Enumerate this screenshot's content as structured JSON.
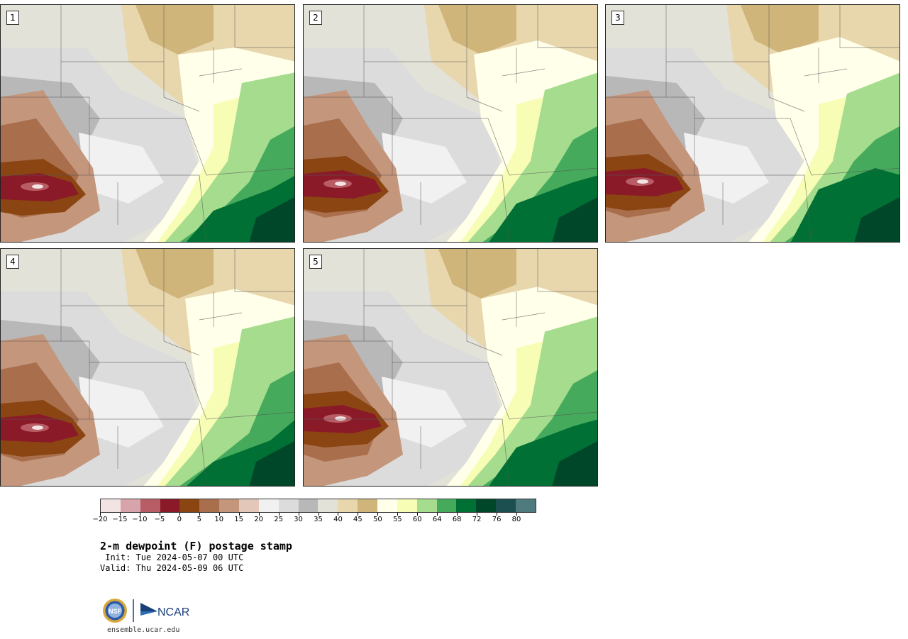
{
  "panels": [
    {
      "label": "1"
    },
    {
      "label": "2"
    },
    {
      "label": "3"
    },
    {
      "label": "4"
    },
    {
      "label": "5"
    }
  ],
  "colorbar": {
    "colors": [
      "#f3e4e4",
      "#d6a4aa",
      "#b85d66",
      "#8a1a28",
      "#8b4512",
      "#a96e4c",
      "#c4967c",
      "#e3c7b8",
      "#f1f1f1",
      "#dcdcdc",
      "#b8b8b8",
      "#e3e2d8",
      "#e8d6ad",
      "#cfb57a",
      "#ffffea",
      "#f7fdb4",
      "#a6dc8e",
      "#46aa5c",
      "#007034",
      "#00472a",
      "#1c5050",
      "#4f7a7e"
    ],
    "ticks": [
      "−20",
      "−15",
      "−10",
      "−5",
      "0",
      "5",
      "10",
      "15",
      "20",
      "25",
      "30",
      "35",
      "40",
      "45",
      "50",
      "55",
      "60",
      "64",
      "68",
      "72",
      "76",
      "80"
    ]
  },
  "title": "2-m dewpoint (F) postage stamp",
  "init": " Init: Tue 2024-05-07 00 UTC",
  "valid": "Valid: Thu 2024-05-09 06 UTC",
  "logos": {
    "left": "NSF",
    "right": "NCAR"
  },
  "site": "ensemble.ucar.edu"
}
